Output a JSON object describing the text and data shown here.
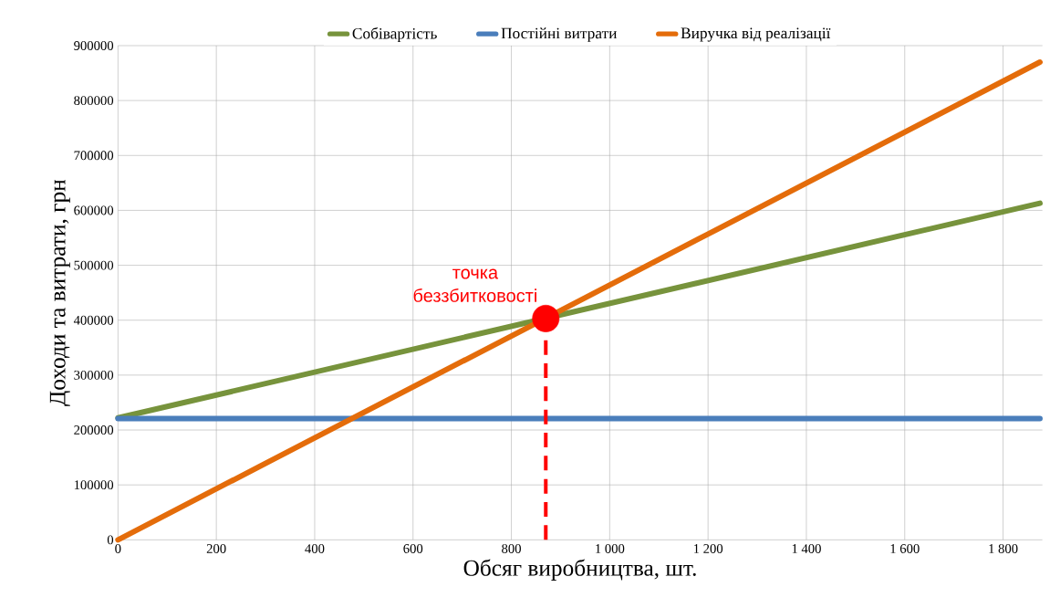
{
  "chart_data": {
    "type": "line",
    "xlabel": "Обсяг виробництва, шт.",
    "ylabel": "Доходи та витрати, грн",
    "series": [
      {
        "name": "Собівартість",
        "color": "#77933c",
        "x": [
          0,
          1875
        ],
        "values": [
          222000,
          613000
        ]
      },
      {
        "name": "Постійні витрати",
        "color": "#4a7ebb",
        "x": [
          0,
          1875
        ],
        "values": [
          221000,
          221000
        ]
      },
      {
        "name": "Виручка від реалізації",
        "color": "#e46c0a",
        "x": [
          0,
          1875
        ],
        "values": [
          0,
          870000
        ]
      },
      {
        "type": "scatter",
        "color": "#ff0000",
        "x": [
          870
        ],
        "values": [
          403000
        ]
      }
    ],
    "annotations": [
      {
        "text": "точка беззбитковості",
        "x": 870,
        "y": 403000
      }
    ],
    "ref_lines": [
      {
        "axis": "x",
        "value": 870,
        "color": "#ff0000",
        "line_style": "dashed"
      }
    ],
    "xlim": [
      0,
      1880
    ],
    "ylim": [
      0,
      900000
    ],
    "xticks": [
      0,
      200,
      400,
      600,
      800,
      {
        "value": 1000,
        "label": "1 000"
      },
      {
        "value": 1200,
        "label": "1 200"
      },
      {
        "value": 1400,
        "label": "1 400"
      },
      {
        "value": 1600,
        "label": "1 600"
      },
      {
        "value": 1800,
        "label": "1 800"
      }
    ],
    "yticks": [
      0,
      100000,
      200000,
      300000,
      400000,
      500000,
      600000,
      700000,
      800000,
      900000
    ],
    "grid": true,
    "legend": "top",
    "marker": "none",
    "line_style": "solid"
  }
}
